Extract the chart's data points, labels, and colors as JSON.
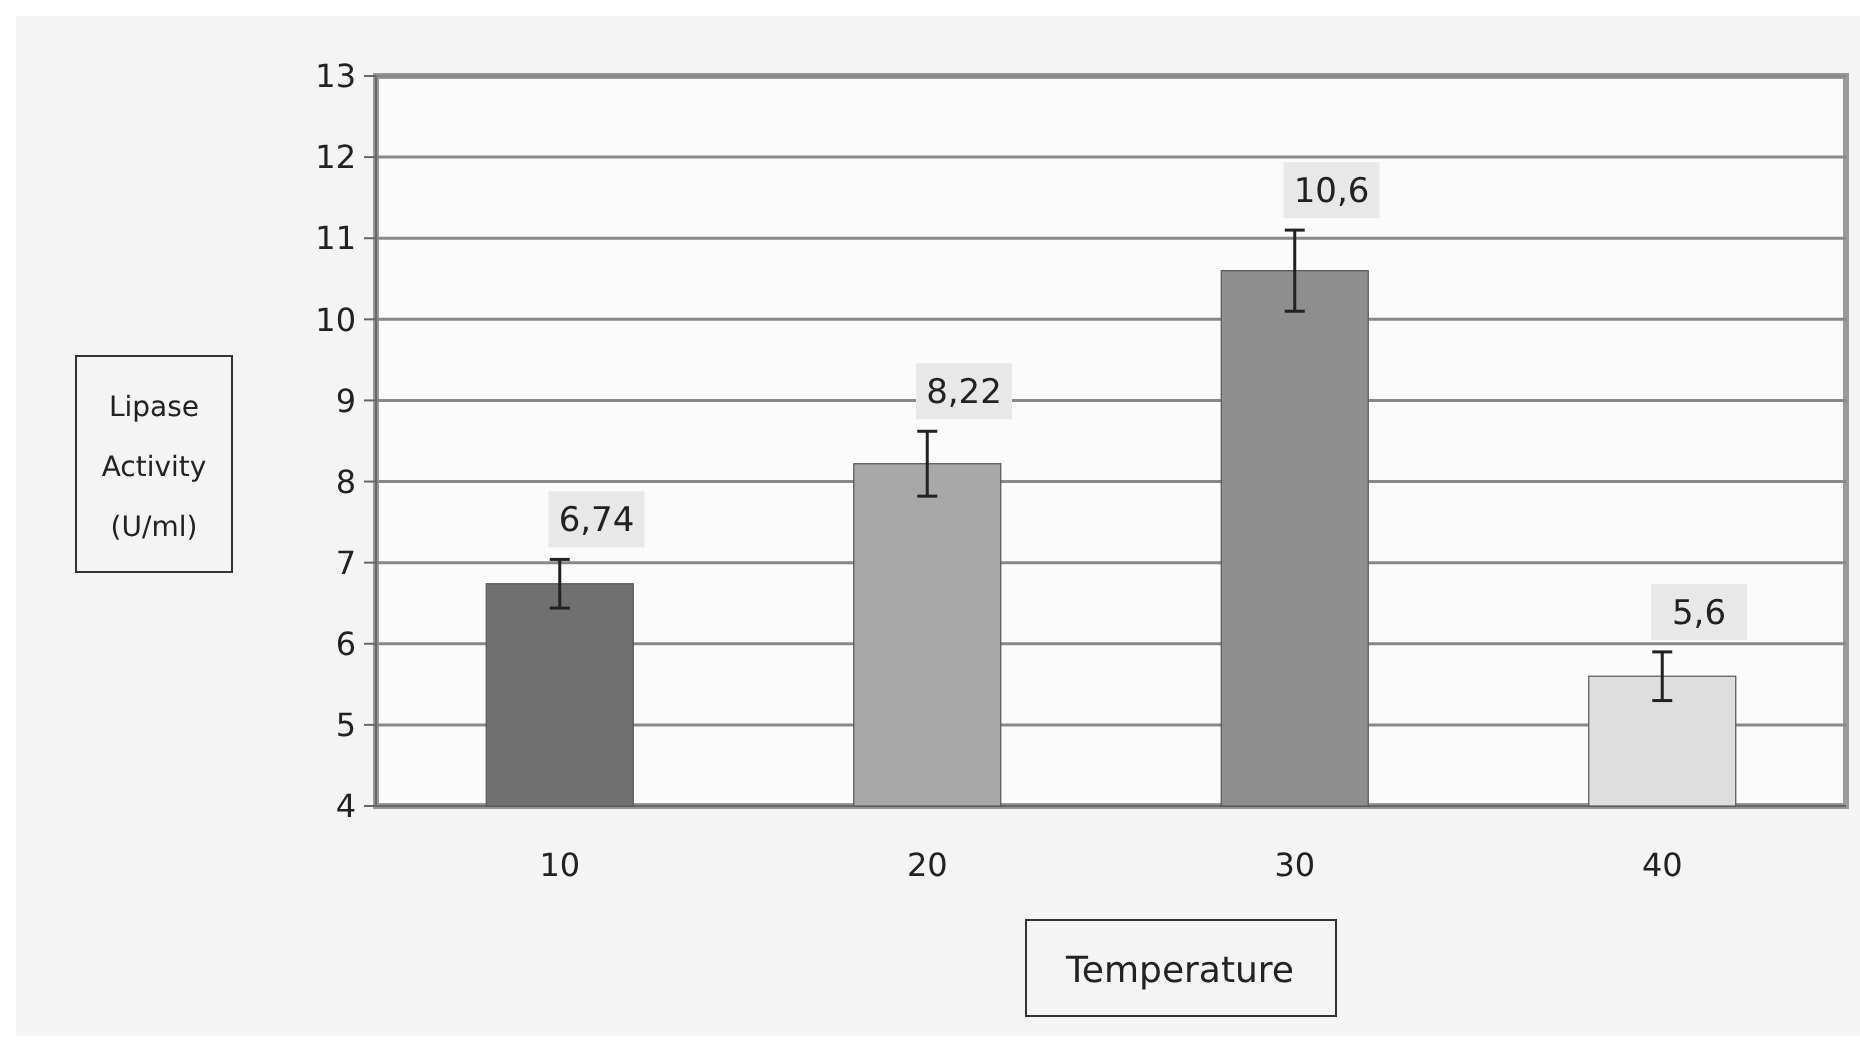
{
  "chart_data": {
    "type": "bar",
    "xlabel": "Temperature",
    "ylabel": "Lipase Activity (U/ml)",
    "categories": [
      "10",
      "20",
      "30",
      "40"
    ],
    "values": [
      6.74,
      8.22,
      10.6,
      5.6
    ],
    "colors": [
      "#707070",
      "#a8a8a8",
      "#8e8e8e",
      "#dedede"
    ],
    "errors": [
      0.3,
      0.4,
      0.5,
      0.3
    ],
    "value_labels": [
      "6,74",
      "8,22",
      "10,6",
      "5,6"
    ],
    "ylim": [
      4,
      13
    ],
    "yticks": [
      4,
      5,
      6,
      7,
      8,
      9,
      10,
      11,
      12,
      13
    ],
    "grid": "y"
  }
}
